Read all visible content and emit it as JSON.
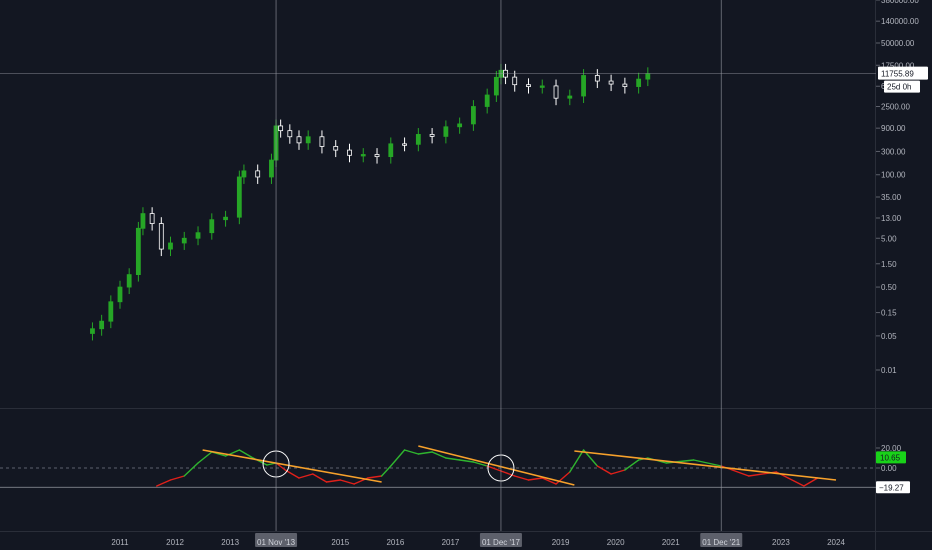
{
  "colors": {
    "background": "#131722",
    "up": "#26a626",
    "down": "#ffffff",
    "osc_green": "#2fb52f",
    "osc_red": "#e0201a",
    "trend": "#f7a12b",
    "grid": "#2a2e39",
    "crosshair": "#9598a1",
    "text": "#b2b5be"
  },
  "price_axis": {
    "ticks": [
      "380000.00",
      "140000.00",
      "50000.00",
      "17500.00",
      "6500.00",
      "2500.00",
      "900.00",
      "300.00",
      "100.00",
      "35.00",
      "13.00",
      "5.00",
      "1.50",
      "0.50",
      "0.15",
      "0.05",
      "0.01"
    ],
    "current_price": "11755.89",
    "countdown": "25d 0h"
  },
  "osc_axis": {
    "ticks": [
      "20.00",
      "0.00"
    ],
    "current_value": "10.65",
    "level_value": "−19.27"
  },
  "time_axis": {
    "labels": [
      "2011",
      "2012",
      "2013",
      "2015",
      "2016",
      "2017",
      "2019",
      "2020",
      "2021",
      "2023",
      "2024"
    ],
    "crosshair_labels": [
      "01 Nov '13",
      "01 Dec '17",
      "01 Dec '21"
    ]
  },
  "chart_data": [
    {
      "type": "candlestick",
      "scale": "log",
      "x": [
        "2010-07",
        "2010-09",
        "2010-11",
        "2011-01",
        "2011-03",
        "2011-05",
        "2011-06",
        "2011-08",
        "2011-10",
        "2011-12",
        "2012-03",
        "2012-06",
        "2012-09",
        "2012-12",
        "2013-03",
        "2013-04",
        "2013-07",
        "2013-10",
        "2013-11",
        "2013-12",
        "2014-02",
        "2014-04",
        "2014-06",
        "2014-09",
        "2014-12",
        "2015-03",
        "2015-06",
        "2015-09",
        "2015-12",
        "2016-03",
        "2016-06",
        "2016-09",
        "2016-12",
        "2017-03",
        "2017-06",
        "2017-09",
        "2017-11",
        "2017-12",
        "2018-01",
        "2018-03",
        "2018-06",
        "2018-09",
        "2018-12",
        "2019-03",
        "2019-06",
        "2019-09",
        "2019-12",
        "2020-03",
        "2020-06",
        "2020-08"
      ],
      "close": [
        0.07,
        0.1,
        0.25,
        0.5,
        0.9,
        8,
        16,
        10,
        3,
        4,
        5,
        6.5,
        12,
        13.5,
        90,
        120,
        90,
        200,
        1000,
        800,
        600,
        450,
        600,
        380,
        320,
        250,
        260,
        235,
        430,
        420,
        670,
        610,
        960,
        1100,
        2500,
        4300,
        9900,
        13800,
        10000,
        7000,
        6400,
        6600,
        3700,
        4100,
        10800,
        8300,
        7200,
        6400,
        9100,
        11755.89
      ]
    },
    {
      "type": "line",
      "name": "oscillator",
      "x": [
        "2011-09",
        "2011-12",
        "2012-03",
        "2012-06",
        "2012-09",
        "2012-12",
        "2013-03",
        "2013-06",
        "2013-09",
        "2013-11",
        "2014-01",
        "2014-04",
        "2014-07",
        "2014-10",
        "2015-01",
        "2015-04",
        "2015-07",
        "2015-10",
        "2015-12",
        "2016-03",
        "2016-06",
        "2016-09",
        "2016-12",
        "2017-03",
        "2017-06",
        "2017-09",
        "2017-12",
        "2018-03",
        "2018-06",
        "2018-09",
        "2018-12",
        "2019-03",
        "2019-06",
        "2019-09",
        "2019-12",
        "2020-03",
        "2020-06",
        "2020-08",
        "2020-12",
        "2021-06",
        "2021-12",
        "2022-06",
        "2022-12",
        "2023-06",
        "2023-09"
      ],
      "y": [
        -18,
        -12,
        -8,
        5,
        16,
        12,
        18,
        10,
        3,
        5,
        -2,
        -10,
        -6,
        -14,
        -12,
        -16,
        -10,
        -8,
        2,
        18,
        14,
        16,
        10,
        8,
        6,
        2,
        -3,
        -8,
        -12,
        -10,
        -16,
        -4,
        18,
        2,
        -6,
        -2,
        8,
        10,
        5,
        8,
        2,
        -8,
        -4,
        -18,
        -10
      ]
    },
    {
      "type": "line",
      "name": "trendlines",
      "x": [
        "2012-07",
        "2015-10",
        "2016-06",
        "2019-04",
        "2019-04",
        "2024-01"
      ],
      "y": [
        18,
        -14,
        22,
        -17,
        17,
        -12
      ]
    }
  ]
}
